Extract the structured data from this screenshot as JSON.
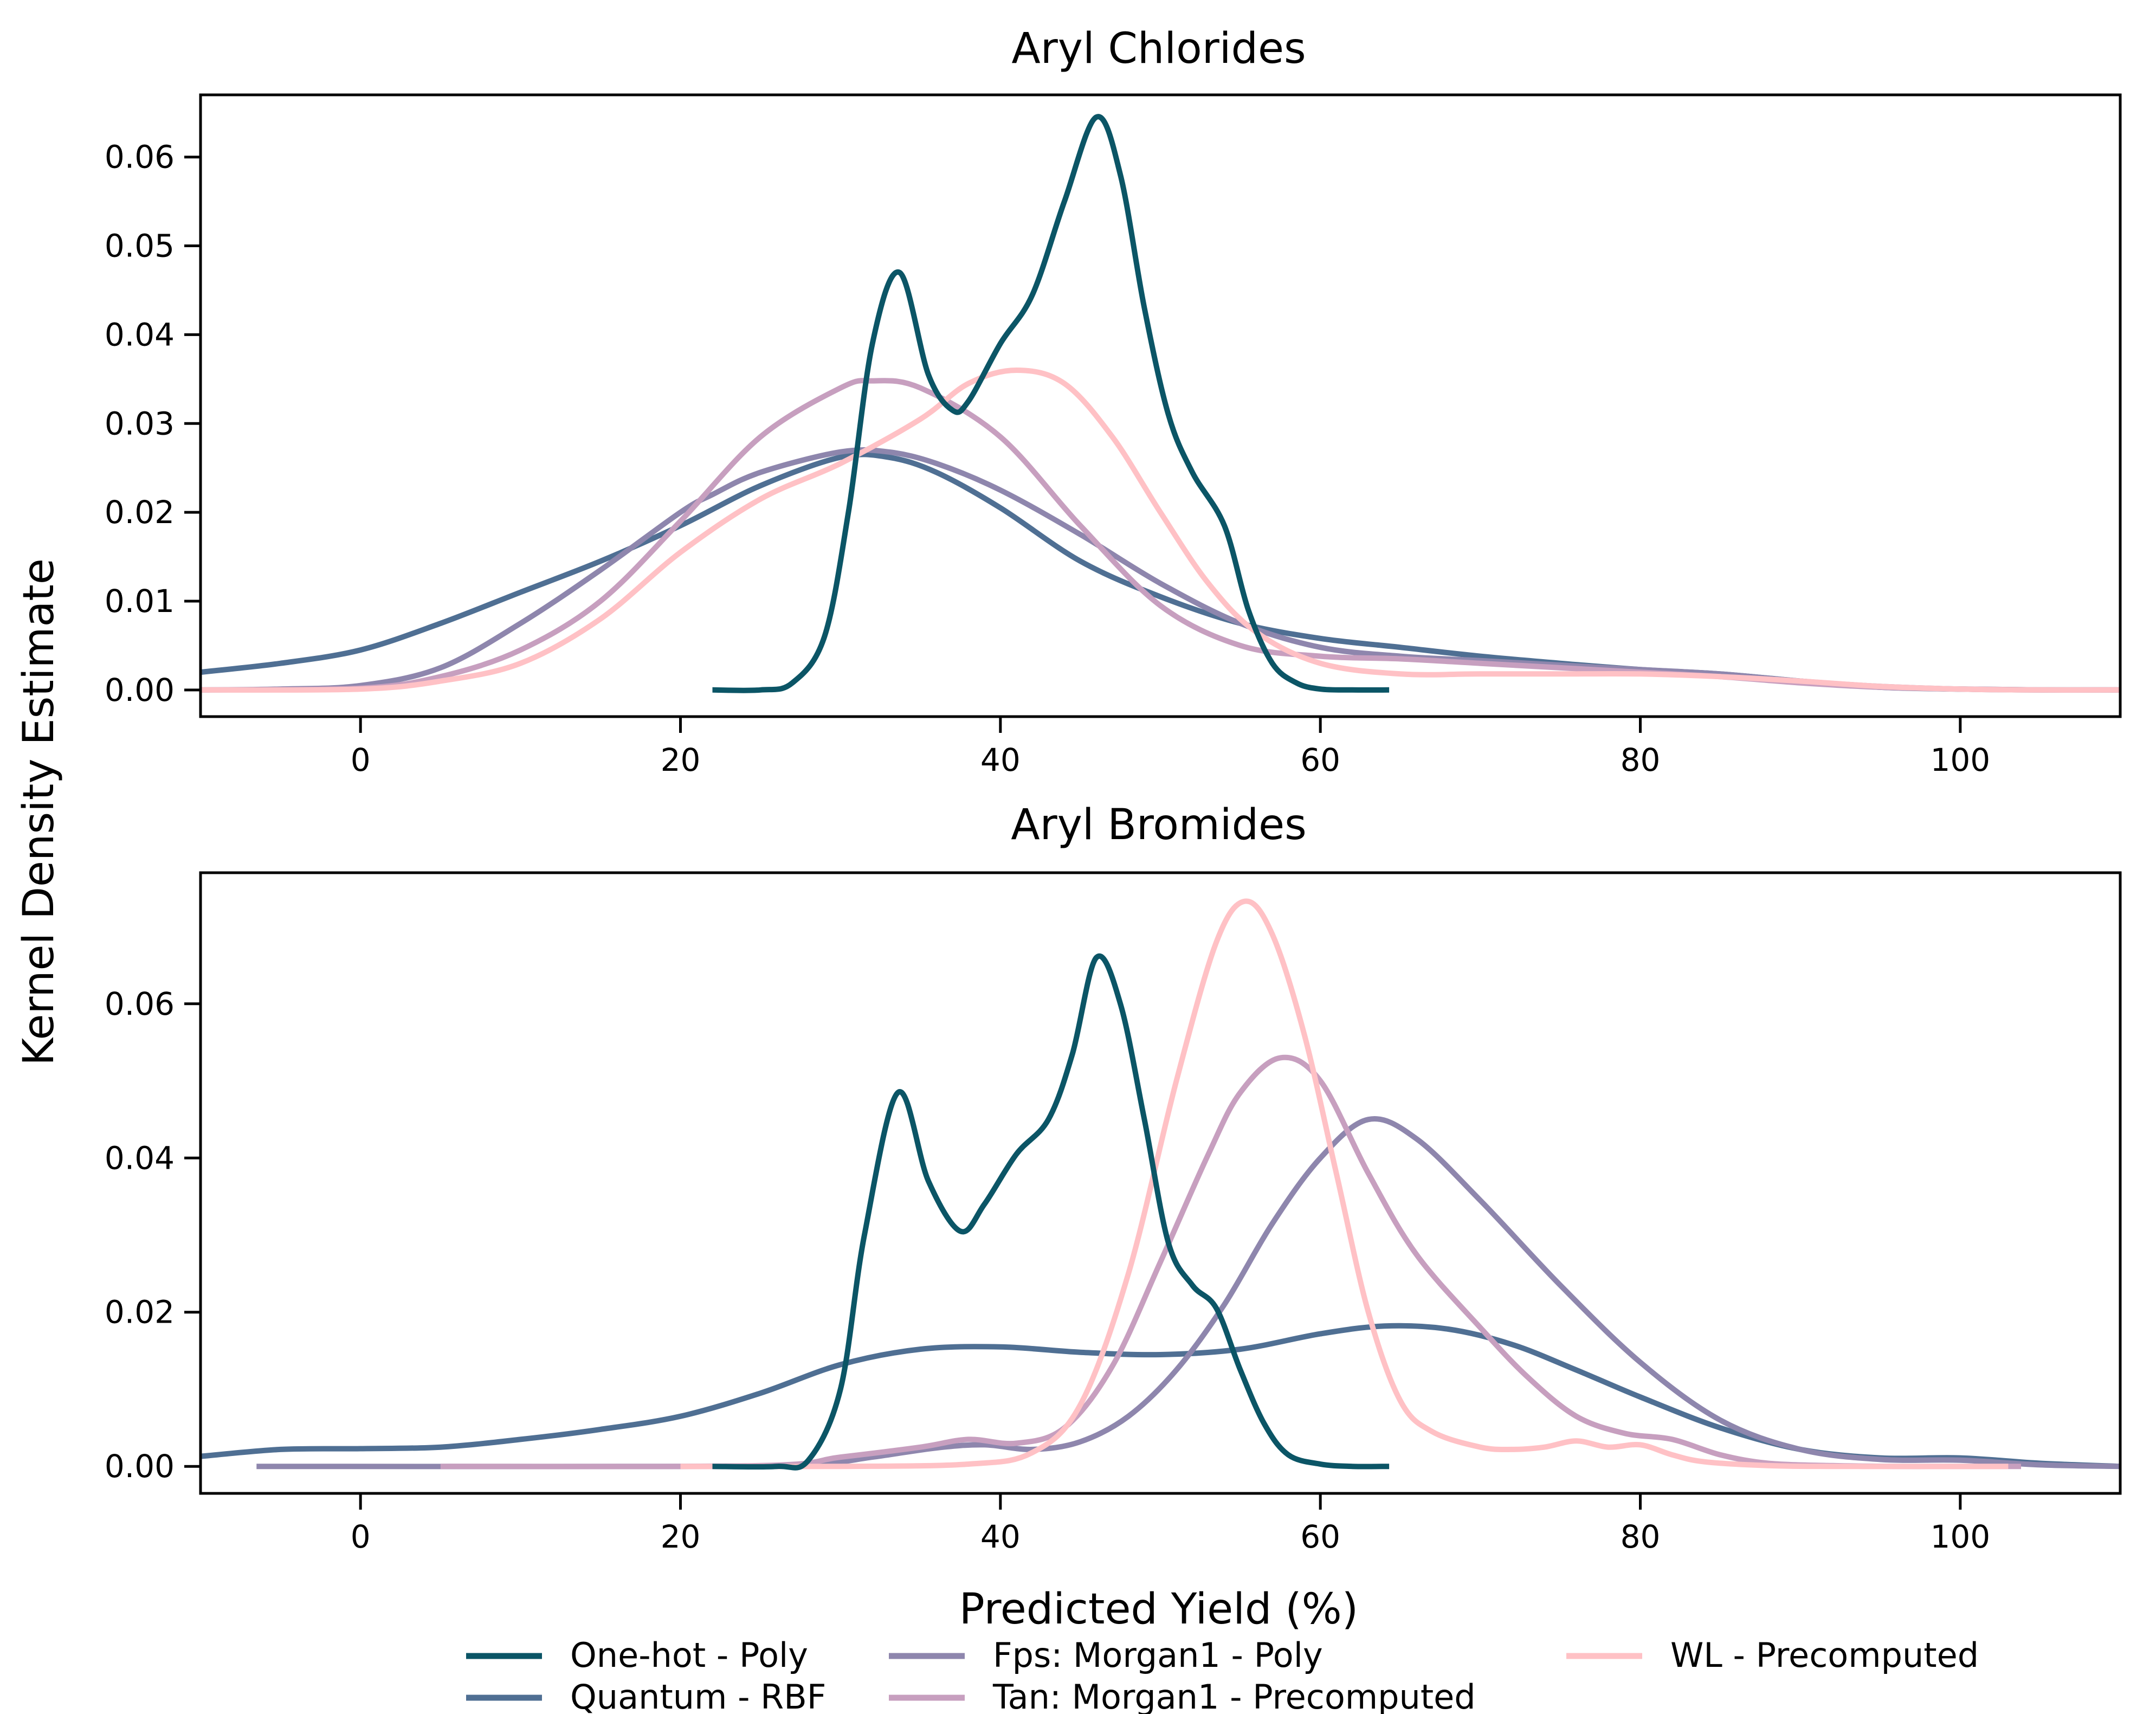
{
  "chart_data": {
    "type": "line",
    "ylabel": "Kernel Density Estimate",
    "xlabel": "Predicted Yield (%)",
    "legend_position": "bottom-center",
    "grid": false,
    "legend": [
      {
        "name": "One-hot - Poly",
        "color": "#0b5566"
      },
      {
        "name": "Quantum - RBF",
        "color": "#4f6f93"
      },
      {
        "name": "Fps: Morgan1 - Poly",
        "color": "#8e86ad"
      },
      {
        "name": "Tan: Morgan1 - Precomputed",
        "color": "#c79fbf"
      },
      {
        "name": "WL - Precomputed",
        "color": "#ffc1c5"
      }
    ],
    "panels": [
      {
        "title": "Aryl Chlorides",
        "xlim": [
          -10,
          110
        ],
        "ylim": [
          -0.003,
          0.067
        ],
        "xticks": [
          0,
          20,
          40,
          60,
          80,
          100
        ],
        "xtick_labels": [
          "0",
          "20",
          "40",
          "60",
          "80",
          "100"
        ],
        "yticks": [
          0,
          0.01,
          0.02,
          0.03,
          0.04,
          0.05,
          0.06
        ],
        "ytick_labels": [
          "0.00",
          "0.01",
          "0.02",
          "0.03",
          "0.04",
          "0.05",
          "0.06"
        ],
        "series": [
          {
            "name": "Quantum - RBF",
            "color": "#4f6f93",
            "x": [
              -10,
              -5,
              0,
              5,
              10,
              15,
              20,
              25,
              30,
              33,
              36,
              40,
              45,
              50,
              55,
              60,
              65,
              70,
              75,
              80,
              85,
              90,
              95,
              100,
              105,
              110
            ],
            "y": [
              0.002,
              0.003,
              0.0045,
              0.0075,
              0.011,
              0.0145,
              0.0185,
              0.023,
              0.0262,
              0.0262,
              0.0245,
              0.0205,
              0.0145,
              0.0105,
              0.0075,
              0.0058,
              0.0048,
              0.0038,
              0.003,
              0.0023,
              0.0018,
              0.001,
              0.0003,
              0.0001,
              0,
              0
            ]
          },
          {
            "name": "Fps: Morgan1 - Poly",
            "color": "#8e86ad",
            "x": [
              -10,
              -5,
              0,
              5,
              10,
              15,
              20,
              22,
              25,
              30,
              33,
              36,
              40,
              45,
              50,
              55,
              60,
              65,
              70,
              75,
              80,
              85,
              90,
              95,
              100,
              105,
              110
            ],
            "y": [
              0,
              0.0001,
              0.0005,
              0.0025,
              0.0075,
              0.0135,
              0.02,
              0.022,
              0.0245,
              0.0268,
              0.0268,
              0.0255,
              0.0225,
              0.0175,
              0.012,
              0.0075,
              0.0048,
              0.0038,
              0.0033,
              0.0028,
              0.0023,
              0.0018,
              0.001,
              0.0004,
              0.0001,
              0,
              0
            ]
          },
          {
            "name": "Tan: Morgan1 - Precomputed",
            "color": "#c79fbf",
            "x": [
              -10,
              0,
              5,
              10,
              15,
              20,
              25,
              30,
              32,
              35,
              40,
              45,
              50,
              55,
              60,
              65,
              70,
              75,
              80,
              85,
              90,
              95,
              100,
              105,
              110
            ],
            "y": [
              0,
              0.0002,
              0.0015,
              0.0045,
              0.01,
              0.019,
              0.0285,
              0.034,
              0.0348,
              0.034,
              0.0285,
              0.0185,
              0.0095,
              0.005,
              0.0038,
              0.0035,
              0.003,
              0.0025,
              0.002,
              0.0015,
              0.0008,
              0.0003,
              0.0001,
              0,
              0
            ]
          },
          {
            "name": "WL - Precomputed",
            "color": "#ffc1c5",
            "x": [
              -10,
              0,
              5,
              10,
              15,
              20,
              25,
              30,
              35,
              38,
              41,
              44,
              47,
              50,
              53,
              56,
              60,
              65,
              70,
              75,
              80,
              85,
              90,
              95,
              100,
              105,
              110
            ],
            "y": [
              0,
              0.0001,
              0.001,
              0.003,
              0.008,
              0.0155,
              0.0215,
              0.0255,
              0.0305,
              0.0345,
              0.036,
              0.0345,
              0.0285,
              0.02,
              0.012,
              0.0065,
              0.003,
              0.0018,
              0.0018,
              0.0018,
              0.0018,
              0.0015,
              0.001,
              0.0004,
              0.0001,
              0,
              0
            ]
          },
          {
            "name": "One-hot - Poly",
            "color": "#0b5566",
            "x": [
              22,
              25,
              27,
              29,
              30.5,
              32,
              33.7,
              35.5,
              37,
              38,
              40,
              42,
              44,
              46,
              47.5,
              49,
              50.5,
              52,
              54,
              55.5,
              57,
              58.5,
              60,
              62,
              64.3
            ],
            "y": [
              0,
              0,
              0.0008,
              0.006,
              0.02,
              0.039,
              0.047,
              0.0355,
              0.0315,
              0.0325,
              0.039,
              0.0445,
              0.055,
              0.0645,
              0.058,
              0.043,
              0.031,
              0.0245,
              0.0185,
              0.009,
              0.003,
              0.0008,
              0.0001,
              0,
              0
            ]
          }
        ]
      },
      {
        "title": "Aryl Bromides",
        "xlim": [
          -10,
          110
        ],
        "ylim": [
          -0.0035,
          0.077
        ],
        "xticks": [
          0,
          20,
          40,
          60,
          80,
          100
        ],
        "xtick_labels": [
          "0",
          "20",
          "40",
          "60",
          "80",
          "100"
        ],
        "yticks": [
          0,
          0.02,
          0.04,
          0.06
        ],
        "ytick_labels": [
          "0.00",
          "0.02",
          "0.04",
          "0.06"
        ],
        "series": [
          {
            "name": "Quantum - RBF",
            "color": "#4f6f93",
            "x": [
              -10,
              -5,
              0,
              5,
              10,
              15,
              20,
              25,
              30,
              35,
              40,
              45,
              50,
              55,
              60,
              64,
              68,
              72,
              76,
              80,
              85,
              90,
              95,
              100,
              105,
              110
            ],
            "y": [
              0.0013,
              0.0022,
              0.0023,
              0.0025,
              0.0035,
              0.0048,
              0.0065,
              0.0095,
              0.0132,
              0.0152,
              0.0155,
              0.0148,
              0.0145,
              0.0152,
              0.0172,
              0.0182,
              0.0178,
              0.0158,
              0.0125,
              0.009,
              0.005,
              0.0022,
              0.0011,
              0.0011,
              0.0004,
              0
            ]
          },
          {
            "name": "Fps: Morgan1 - Poly",
            "color": "#8e86ad",
            "x": [
              -6.5,
              20,
              28,
              32,
              36,
              39,
              42,
              45,
              48,
              51,
              54,
              57,
              60,
              63,
              66,
              70,
              75,
              80,
              85,
              90,
              95,
              100,
              105,
              110
            ],
            "y": [
              0,
              0,
              0.0002,
              0.0012,
              0.0024,
              0.0028,
              0.0022,
              0.0032,
              0.0065,
              0.0125,
              0.021,
              0.0315,
              0.04,
              0.045,
              0.0425,
              0.0345,
              0.0235,
              0.0135,
              0.006,
              0.0022,
              0.0009,
              0.0008,
              0.0002,
              0
            ]
          },
          {
            "name": "Tan: Morgan1 - Precomputed",
            "color": "#c79fbf",
            "x": [
              5,
              25,
              30,
              35,
              38,
              41,
              44,
              47,
              50,
              53,
              55,
              57.5,
              60,
              63,
              66,
              70,
              73,
              76,
              79,
              82,
              85,
              88,
              92,
              96,
              100,
              103.8
            ],
            "y": [
              0,
              0.0001,
              0.0012,
              0.0025,
              0.0035,
              0.003,
              0.005,
              0.013,
              0.0265,
              0.0405,
              0.0485,
              0.053,
              0.05,
              0.038,
              0.0275,
              0.018,
              0.0115,
              0.0065,
              0.0043,
              0.0035,
              0.0015,
              0.0004,
              0.0001,
              0,
              0,
              0
            ]
          },
          {
            "name": "WL - Precomputed",
            "color": "#ffc1c5",
            "x": [
              20,
              30,
              38,
              42,
              45,
              48,
              51,
              53.5,
              55.3,
              57,
              59,
              61,
              63,
              65,
              67,
              70,
              72,
              74,
              76,
              78,
              80,
              82,
              84,
              88,
              92,
              96,
              100,
              103
            ],
            "y": [
              0,
              0,
              0.0003,
              0.0018,
              0.008,
              0.025,
              0.05,
              0.068,
              0.0733,
              0.069,
              0.056,
              0.038,
              0.02,
              0.0085,
              0.0045,
              0.0025,
              0.0022,
              0.0025,
              0.0033,
              0.0025,
              0.0028,
              0.0015,
              0.0006,
              0.0001,
              0,
              0,
              0,
              0
            ]
          },
          {
            "name": "One-hot - Poly",
            "color": "#0b5566",
            "x": [
              22,
              26,
              28,
              30,
              31.5,
              33.6,
              35.5,
              37.5,
              39,
              41,
              43,
              44.5,
              46,
              47.5,
              49,
              50.5,
              52,
              53.5,
              55,
              56.5,
              58,
              60,
              62,
              64.3
            ],
            "y": [
              0,
              0,
              0.0008,
              0.01,
              0.03,
              0.0485,
              0.037,
              0.0305,
              0.034,
              0.0405,
              0.045,
              0.0535,
              0.066,
              0.06,
              0.045,
              0.029,
              0.0235,
              0.0205,
              0.0125,
              0.0055,
              0.0015,
              0.0003,
              0,
              0
            ]
          }
        ]
      }
    ]
  }
}
